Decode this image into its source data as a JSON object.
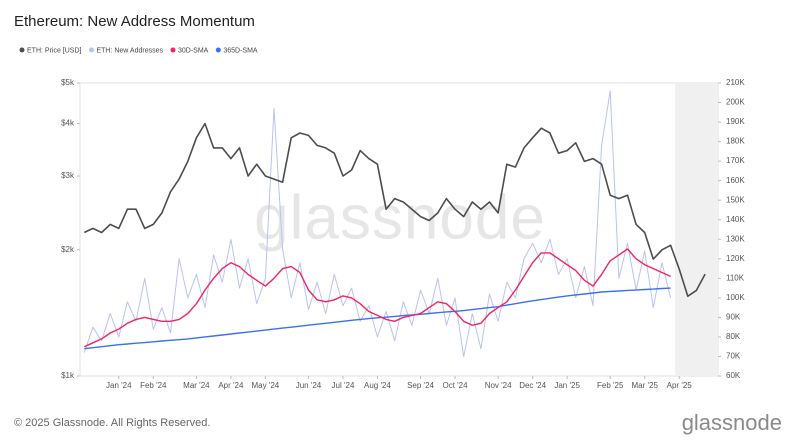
{
  "chart_data": {
    "type": "line",
    "title": "Ethereum: New Address Momentum",
    "watermark": "glassnode",
    "copyright": "© 2025 Glassnode. All Rights Reserved.",
    "logo": "glassnode",
    "ylog": true,
    "grid": false,
    "legend": "top-left",
    "categories": [
      null,
      null,
      null,
      null,
      "Jan '24",
      null,
      null,
      null,
      "Feb '24",
      null,
      null,
      null,
      null,
      "Mar '24",
      null,
      null,
      null,
      "Apr '24",
      null,
      null,
      null,
      "May '24",
      null,
      null,
      null,
      null,
      "Jun '24",
      null,
      null,
      null,
      "Jul '24",
      null,
      null,
      null,
      "Aug '24",
      null,
      null,
      null,
      null,
      "Sep '24",
      null,
      null,
      null,
      "Oct '24",
      null,
      null,
      null,
      null,
      "Nov '24",
      null,
      null,
      null,
      "Dec '24",
      null,
      null,
      null,
      "Jan '25",
      null,
      null,
      null,
      null,
      "Feb '25",
      null,
      null,
      null,
      "Mar '25",
      null,
      null,
      null,
      "Apr '25",
      null,
      null,
      null,
      null
    ],
    "ylim": [
      1000,
      5000
    ],
    "yticks": [
      {
        "value": 1000,
        "label": "$1k"
      },
      {
        "value": 2000,
        "label": "$2k"
      },
      {
        "value": 3000,
        "label": "$3k"
      },
      {
        "value": 4000,
        "label": "$4k"
      },
      {
        "value": 5000,
        "label": "$5k"
      }
    ],
    "y2lim": [
      60000,
      210000
    ],
    "y2ticks": [
      {
        "value": 60000,
        "label": "60K"
      },
      {
        "value": 70000,
        "label": "70K"
      },
      {
        "value": 80000,
        "label": "80K"
      },
      {
        "value": 90000,
        "label": "90K"
      },
      {
        "value": 100000,
        "label": "100K"
      },
      {
        "value": 110000,
        "label": "110K"
      },
      {
        "value": 120000,
        "label": "120K"
      },
      {
        "value": 130000,
        "label": "130K"
      },
      {
        "value": 140000,
        "label": "140K"
      },
      {
        "value": 150000,
        "label": "150K"
      },
      {
        "value": 160000,
        "label": "160K"
      },
      {
        "value": 170000,
        "label": "170K"
      },
      {
        "value": 180000,
        "label": "180K"
      },
      {
        "value": 190000,
        "label": "190K"
      },
      {
        "value": 200000,
        "label": "200K"
      },
      {
        "value": 210000,
        "label": "210K"
      }
    ],
    "series": [
      {
        "name": "ETH: Price [USD]",
        "color": "#4d4d4d",
        "axis": "y",
        "values": [
          2200,
          2250,
          2200,
          2300,
          2250,
          2500,
          2500,
          2250,
          2300,
          2450,
          2750,
          2950,
          3250,
          3700,
          4000,
          3500,
          3500,
          3300,
          3500,
          3000,
          3200,
          3000,
          2950,
          2900,
          3700,
          3800,
          3750,
          3550,
          3500,
          3400,
          3000,
          3100,
          3450,
          3300,
          3200,
          2500,
          2650,
          2600,
          2500,
          2400,
          2350,
          2450,
          2650,
          2500,
          2400,
          2600,
          2500,
          2600,
          2450,
          3200,
          3150,
          3500,
          3700,
          3900,
          3800,
          3400,
          3450,
          3600,
          3250,
          3300,
          3200,
          2700,
          2650,
          2700,
          2300,
          2200,
          1900,
          2000,
          2050,
          1800,
          1550,
          1600,
          1750,
          null
        ]
      },
      {
        "name": "ETH: New Addresses",
        "color": "#b9c2f5",
        "axis": "y2",
        "values": [
          72000,
          85000,
          78000,
          92000,
          80000,
          98000,
          88000,
          110000,
          84000,
          95000,
          82000,
          120000,
          100000,
          112000,
          95000,
          122000,
          108000,
          130000,
          105000,
          120000,
          97000,
          110000,
          197000,
          125000,
          100000,
          118000,
          94000,
          108000,
          92000,
          112000,
          96000,
          105000,
          88000,
          96000,
          80000,
          93000,
          78000,
          98000,
          86000,
          104000,
          92000,
          110000,
          86000,
          100000,
          70000,
          92000,
          74000,
          102000,
          88000,
          108000,
          100000,
          120000,
          128000,
          118000,
          130000,
          112000,
          120000,
          100000,
          116000,
          96000,
          178000,
          206000,
          110000,
          128000,
          104000,
          124000,
          95000,
          118000,
          100000,
          null,
          null,
          null,
          null,
          null
        ]
      },
      {
        "name": "30D-SMA",
        "color": "#f0255e",
        "axis": "y2",
        "values": [
          75000,
          77000,
          79000,
          82000,
          84000,
          87000,
          89000,
          90000,
          89000,
          88000,
          88000,
          89000,
          92000,
          97000,
          104000,
          110000,
          115000,
          118000,
          116000,
          112000,
          109000,
          106000,
          110000,
          115000,
          116000,
          113000,
          104000,
          99000,
          98000,
          99000,
          101000,
          100000,
          97000,
          93000,
          91000,
          89000,
          88000,
          90000,
          91000,
          92000,
          95000,
          98000,
          97000,
          93000,
          88000,
          86000,
          87000,
          92000,
          95000,
          98000,
          104000,
          111000,
          118000,
          123000,
          123000,
          120000,
          117000,
          114000,
          109000,
          106000,
          112000,
          119000,
          122000,
          125000,
          120000,
          117000,
          115000,
          113000,
          111000,
          null,
          null,
          null,
          null,
          null
        ]
      },
      {
        "name": "365D-SMA",
        "color": "#3d6ff0",
        "axis": "y2",
        "values": [
          74000,
          74500,
          75000,
          75500,
          76000,
          76400,
          76800,
          77100,
          77500,
          77900,
          78300,
          78600,
          79000,
          79500,
          80000,
          80500,
          81000,
          81500,
          82000,
          82500,
          83000,
          83500,
          84000,
          84500,
          85000,
          85500,
          86000,
          86500,
          87000,
          87500,
          88000,
          88500,
          89000,
          89400,
          89800,
          90100,
          90500,
          90900,
          91300,
          91600,
          92000,
          92400,
          92800,
          93100,
          93500,
          94000,
          94500,
          95000,
          95500,
          96300,
          97000,
          97800,
          98500,
          99100,
          99800,
          100400,
          101000,
          101500,
          102000,
          102500,
          103000,
          103300,
          103500,
          103800,
          104000,
          104300,
          104500,
          104800,
          105000,
          null,
          null,
          null,
          null,
          null
        ]
      }
    ]
  }
}
